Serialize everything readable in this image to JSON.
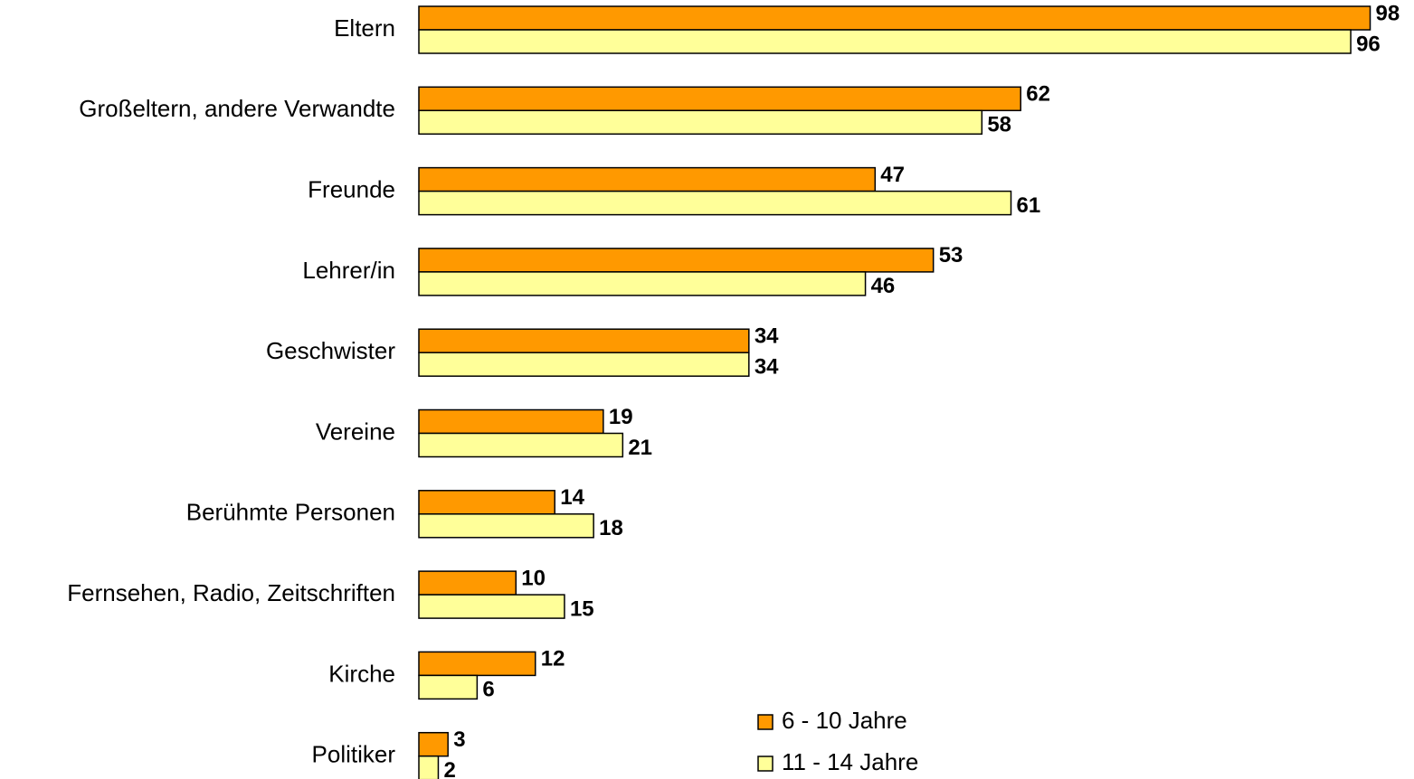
{
  "chart_data": {
    "type": "bar",
    "orientation": "horizontal",
    "categories": [
      "Eltern",
      "Großeltern, andere Verwandte",
      "Freunde",
      "Lehrer/in",
      "Geschwister",
      "Vereine",
      "Berühmte Personen",
      "Fernsehen, Radio, Zeitschriften",
      "Kirche",
      "Politiker"
    ],
    "series": [
      {
        "name": "6 - 10 Jahre",
        "color": "#ff9900",
        "values": [
          98,
          62,
          47,
          53,
          34,
          19,
          14,
          10,
          12,
          3
        ]
      },
      {
        "name": "11 - 14 Jahre",
        "color": "#ffff99",
        "values": [
          96,
          58,
          61,
          46,
          34,
          21,
          18,
          15,
          6,
          2
        ]
      }
    ],
    "xlim": [
      0,
      100
    ],
    "legend": "bottom",
    "grid": false
  }
}
